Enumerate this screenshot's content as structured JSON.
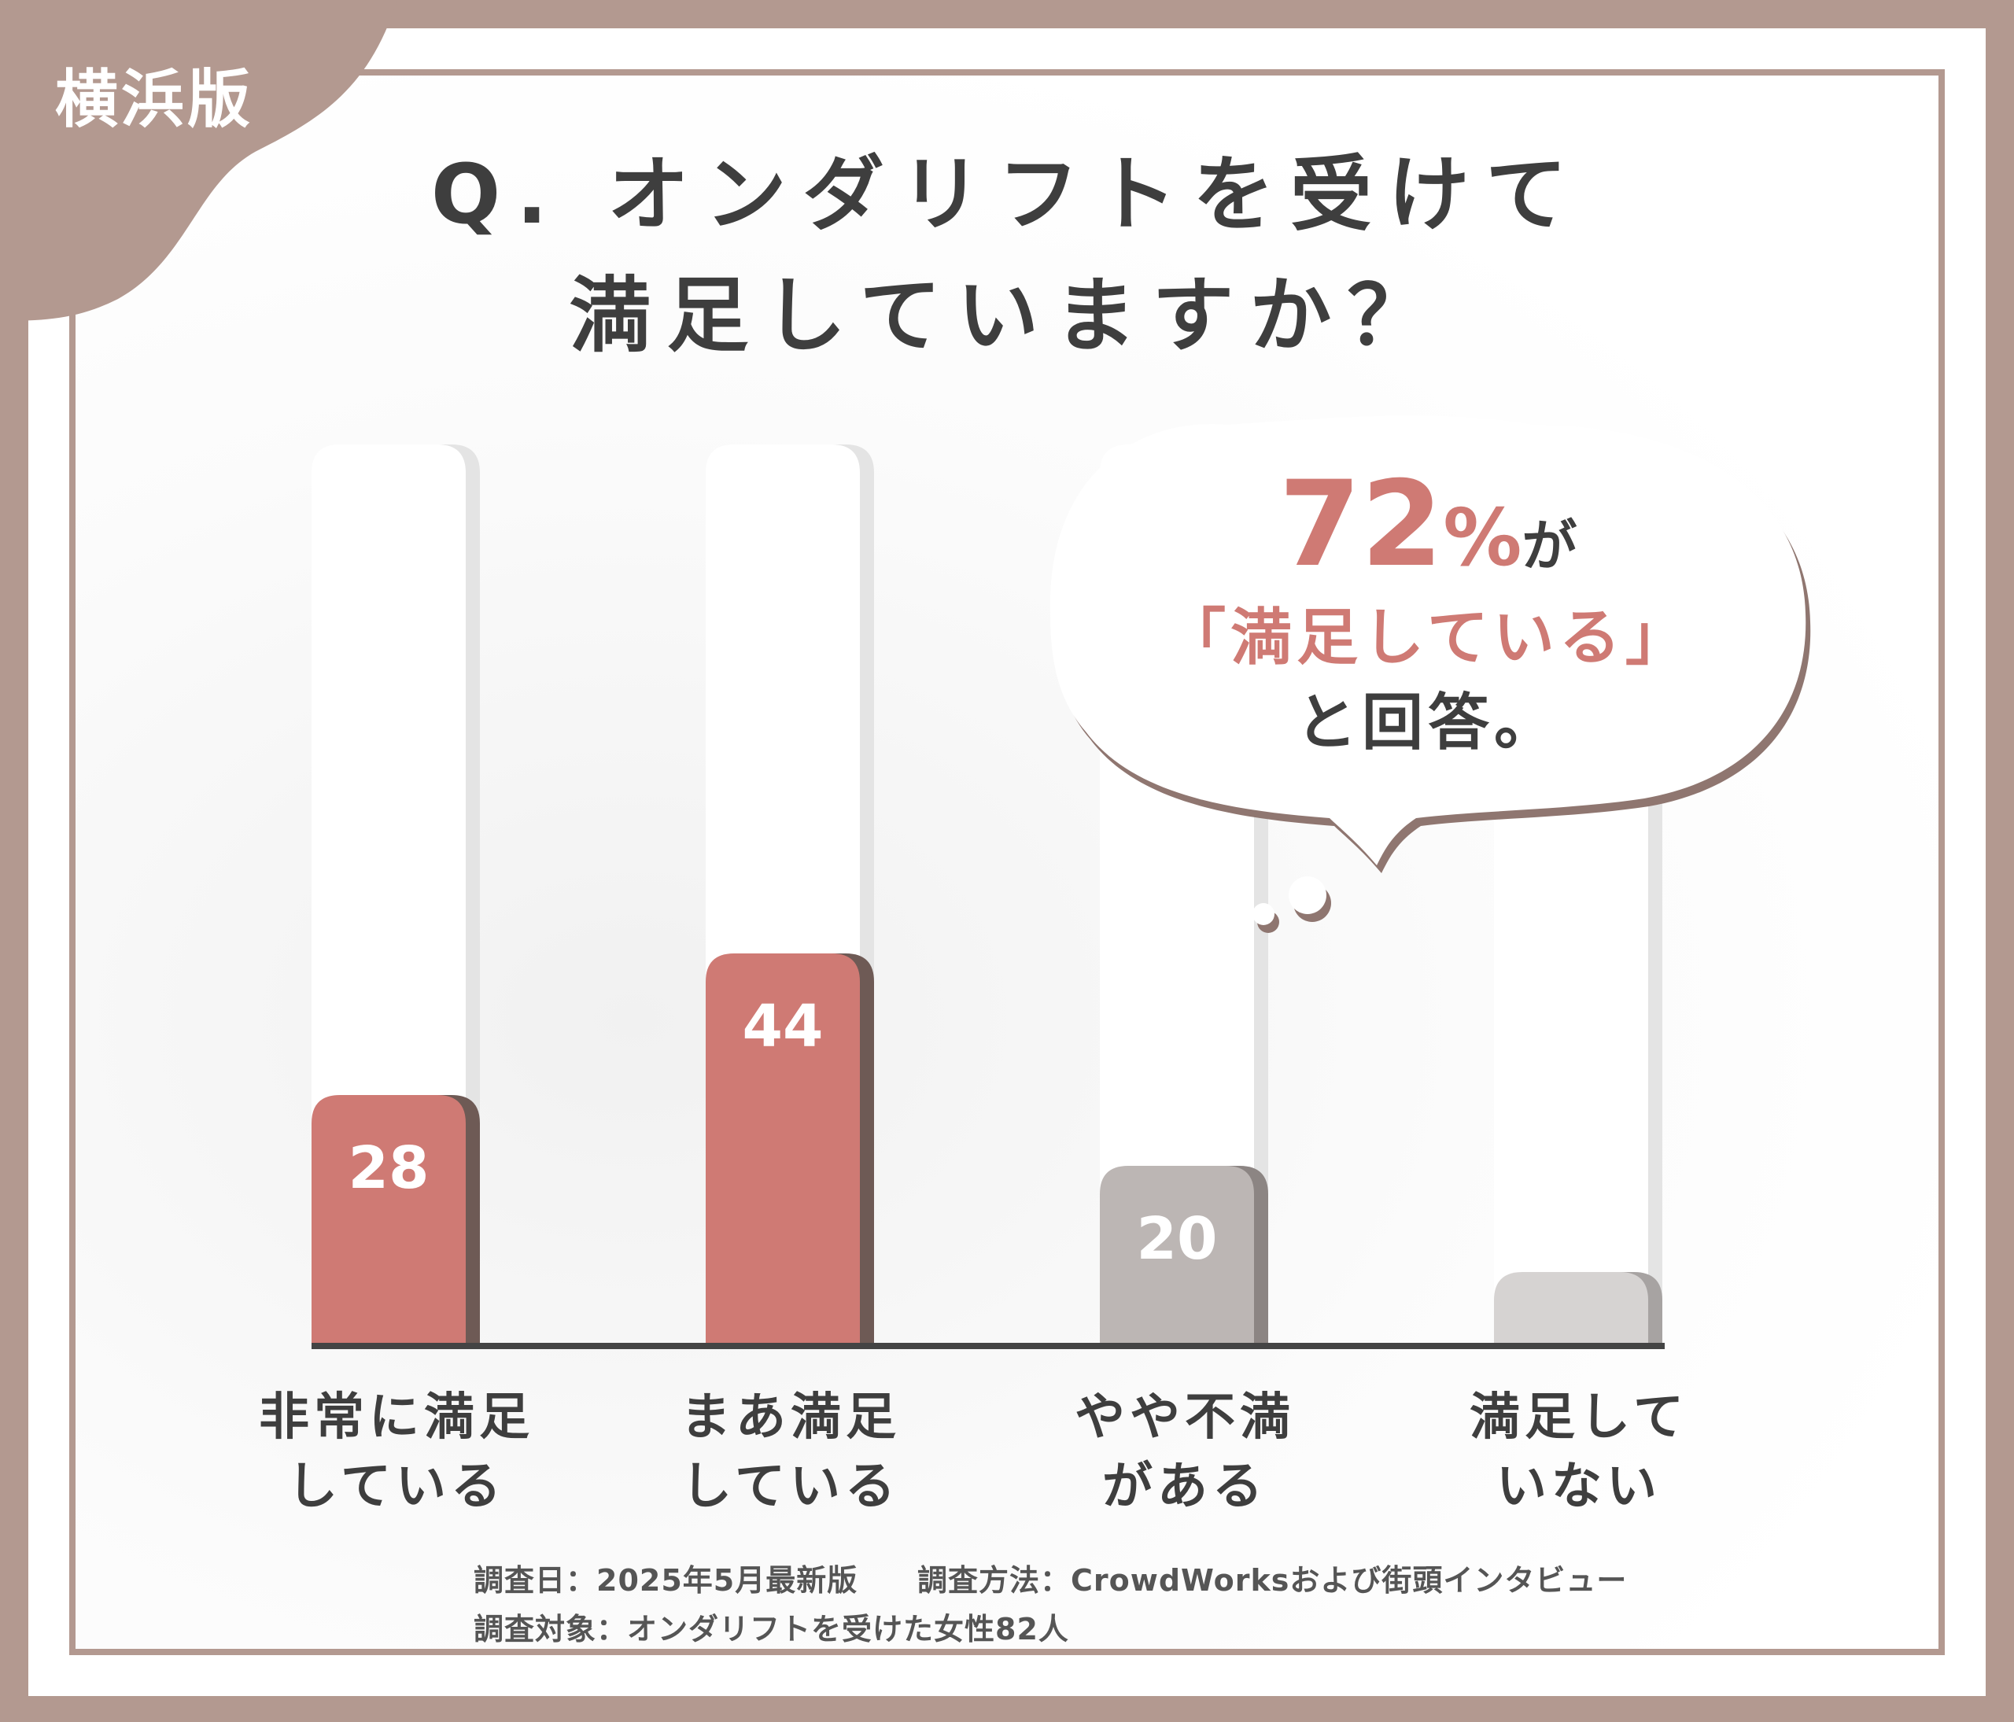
{
  "badge": {
    "label": "横浜版"
  },
  "title": {
    "line1": "Q. オンダリフトを受けて",
    "line2": "満足していますか？"
  },
  "callout": {
    "percent": "72",
    "percent_symbol": "%",
    "suffix": "が",
    "line2": "「満足している」",
    "line3": "と回答。"
  },
  "chart_data": {
    "type": "bar",
    "categories": [
      [
        "非常に満足",
        "している"
      ],
      [
        "まあ満足",
        "している"
      ],
      [
        "やや不満",
        "がある"
      ],
      [
        "満足して",
        "いない"
      ]
    ],
    "values": [
      28,
      44,
      20,
      8
    ],
    "value_labels": [
      "28",
      "44",
      "20",
      "8"
    ],
    "colors": [
      "#cf7a74",
      "#cf7a74",
      "#bcb6b4",
      "#d6d3d2"
    ],
    "value_label_colors": [
      "#ffffff",
      "#ffffff",
      "#ffffff",
      "#bcb6b4"
    ],
    "shadow_colors": [
      "#6e5a55",
      "#6e5a55",
      "#8c8583",
      "#a7a3a2"
    ],
    "unit": "%",
    "ylim": [
      0,
      100
    ],
    "title": "Q. オンダリフトを受けて満足していますか？",
    "grid": false,
    "legend": "none"
  },
  "footnotes": {
    "date": "調査日：2025年5月最新版",
    "method": "調査方法：CrowdWorksおよび街頭インタビュー",
    "target": "調査対象：オンダリフトを受けた女性82人"
  },
  "colors": {
    "frame": "#b39990",
    "accent": "#cf7a74",
    "text": "#3e3e3e"
  }
}
